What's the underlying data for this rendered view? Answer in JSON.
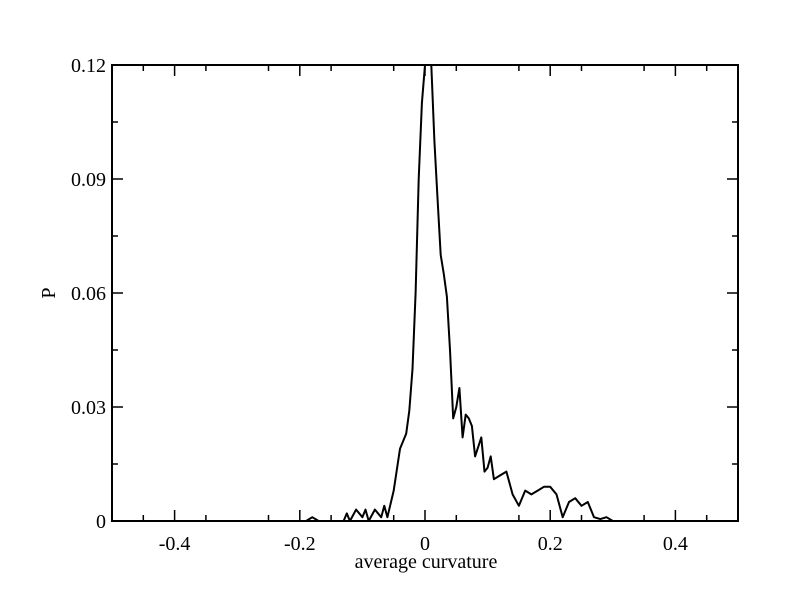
{
  "chart_data": {
    "type": "line",
    "title": "",
    "xlabel": "average curvature",
    "ylabel": "P",
    "xlim": [
      -0.5,
      0.5
    ],
    "ylim": [
      0,
      0.12
    ],
    "grid": false,
    "legend": "none",
    "x_ticks": [
      -0.4,
      -0.2,
      0,
      0.2,
      0.4
    ],
    "x_tick_labels": [
      "-0.4",
      "-0.2",
      "0",
      "0.2",
      "0.4"
    ],
    "y_ticks": [
      0,
      0.03,
      0.06,
      0.09,
      0.12
    ],
    "y_tick_labels": [
      "0",
      "0.03",
      "0.06",
      "0.09",
      "0.12"
    ],
    "line_color": "#000000",
    "series": [
      {
        "x": [
          -0.19,
          -0.18,
          -0.17,
          -0.14,
          -0.13,
          -0.125,
          -0.12,
          -0.11,
          -0.1,
          -0.095,
          -0.09,
          -0.08,
          -0.07,
          -0.065,
          -0.06,
          -0.05,
          -0.04,
          -0.03,
          -0.025,
          -0.02,
          -0.015,
          -0.01,
          -0.005,
          0,
          0.005,
          0.01,
          0.015,
          0.02,
          0.025,
          0.03,
          0.035,
          0.04,
          0.045,
          0.05,
          0.055,
          0.06,
          0.065,
          0.07,
          0.075,
          0.08,
          0.09,
          0.095,
          0.1,
          0.105,
          0.11,
          0.12,
          0.13,
          0.14,
          0.15,
          0.16,
          0.17,
          0.18,
          0.19,
          0.2,
          0.21,
          0.22,
          0.23,
          0.24,
          0.25,
          0.26,
          0.27,
          0.28,
          0.29,
          0.3,
          0.31,
          0.315,
          0.32,
          0.33,
          0.335,
          0.34,
          0.35
        ],
        "y": [
          0,
          0.001,
          0,
          0,
          0,
          0.002,
          0,
          0.003,
          0.001,
          0.003,
          0,
          0.003,
          0.001,
          0.004,
          0.001,
          0.008,
          0.019,
          0.023,
          0.029,
          0.04,
          0.06,
          0.09,
          0.11,
          0.12,
          0.12,
          0.12,
          0.1,
          0.085,
          0.07,
          0.065,
          0.059,
          0.045,
          0.027,
          0.03,
          0.035,
          0.022,
          0.028,
          0.027,
          0.025,
          0.017,
          0.022,
          0.013,
          0.014,
          0.017,
          0.011,
          0.012,
          0.013,
          0.007,
          0.004,
          0.008,
          0.007,
          0.008,
          0.009,
          0.009,
          0.007,
          0.001,
          0.005,
          0.006,
          0.004,
          0.005,
          0.001,
          0.0005,
          0.001,
          0,
          0,
          0,
          0,
          0,
          0,
          0,
          0
        ]
      }
    ]
  }
}
